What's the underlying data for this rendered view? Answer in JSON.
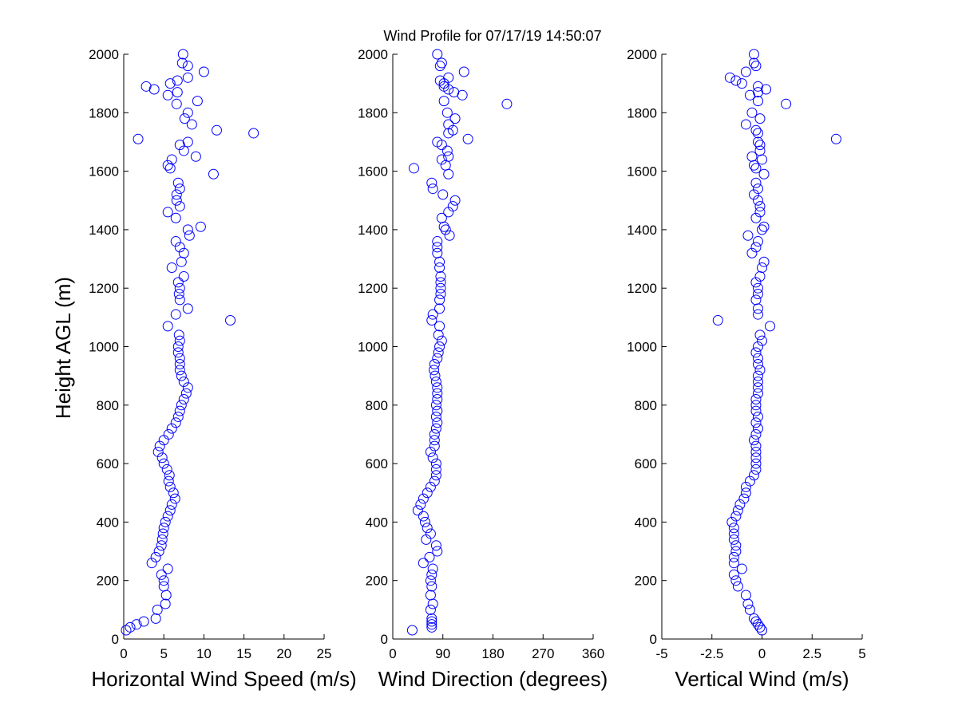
{
  "chart_data": [
    {
      "type": "scatter",
      "title": "Wind Profile for  07/17/19 14:50:07",
      "ylabel": "Height AGL (m)",
      "xlabel": "Horizontal Wind Speed (m/s)",
      "color": "#0000ff",
      "xlim": [
        0,
        25
      ],
      "xticks": [
        0,
        5,
        10,
        15,
        20,
        25
      ],
      "ylim": [
        0,
        2000
      ],
      "yticks": [
        0,
        200,
        400,
        600,
        800,
        1000,
        1200,
        1400,
        1600,
        1800,
        2000
      ],
      "x": [
        0.3,
        0.8,
        1.6,
        2.5,
        4.0,
        4.2,
        5.2,
        5.3,
        5.0,
        5.0,
        4.7,
        5.5,
        3.5,
        4.0,
        4.4,
        4.7,
        4.8,
        4.9,
        5.0,
        5.2,
        5.5,
        5.8,
        6.0,
        6.4,
        6.2,
        5.8,
        5.6,
        5.7,
        5.4,
        5.0,
        4.8,
        4.3,
        4.5,
        5.0,
        5.6,
        6.0,
        6.5,
        6.8,
        7.0,
        7.2,
        7.5,
        7.8,
        8.0,
        7.5,
        7.2,
        7.0,
        7.0,
        7.0,
        6.8,
        6.8,
        7.0,
        6.9,
        5.5,
        13.3,
        6.5,
        8.0,
        7.0,
        6.9,
        7.0,
        6.8,
        7.5,
        6.0,
        7.2,
        7.5,
        7.0,
        6.5,
        8.2,
        8.0,
        9.6,
        6.5,
        5.5,
        7.0,
        6.6,
        6.6,
        7.0,
        6.8,
        11.2,
        5.8,
        5.5,
        6.0,
        9.0,
        7.5,
        7.0,
        8.0,
        1.8,
        16.2,
        11.6,
        8.5,
        7.6,
        8.0,
        6.6,
        9.2,
        5.5,
        6.7,
        3.8,
        2.8,
        5.8,
        6.7,
        8.0,
        10.0,
        8.0,
        7.3,
        7.4
      ],
      "y": [
        30,
        40,
        50,
        60,
        70,
        100,
        120,
        150,
        180,
        200,
        220,
        240,
        260,
        280,
        300,
        320,
        340,
        360,
        380,
        400,
        420,
        440,
        460,
        480,
        500,
        520,
        540,
        560,
        580,
        600,
        620,
        640,
        660,
        680,
        700,
        720,
        740,
        760,
        780,
        800,
        820,
        840,
        860,
        880,
        900,
        920,
        940,
        960,
        980,
        1000,
        1020,
        1040,
        1070,
        1090,
        1110,
        1130,
        1160,
        1180,
        1200,
        1220,
        1240,
        1270,
        1290,
        1320,
        1340,
        1360,
        1380,
        1400,
        1410,
        1440,
        1460,
        1480,
        1500,
        1520,
        1540,
        1560,
        1590,
        1610,
        1620,
        1640,
        1650,
        1670,
        1690,
        1700,
        1710,
        1730,
        1740,
        1760,
        1780,
        1800,
        1830,
        1840,
        1860,
        1870,
        1880,
        1890,
        1900,
        1910,
        1920,
        1940,
        1960,
        1970,
        2000
      ]
    },
    {
      "type": "scatter",
      "xlabel": "Wind Direction (degrees)",
      "color": "#0000ff",
      "xlim": [
        0,
        360
      ],
      "xticks": [
        0,
        90,
        180,
        270,
        360
      ],
      "ylim": [
        0,
        2000
      ],
      "yticks": [
        0,
        200,
        400,
        600,
        800,
        1000,
        1200,
        1400,
        1600,
        1800,
        2000
      ],
      "x": [
        35,
        70,
        70,
        70,
        70,
        68,
        72,
        68,
        70,
        68,
        70,
        72,
        55,
        66,
        80,
        78,
        60,
        68,
        62,
        58,
        55,
        45,
        50,
        55,
        62,
        68,
        75,
        78,
        78,
        78,
        72,
        68,
        75,
        75,
        75,
        78,
        80,
        78,
        80,
        78,
        80,
        80,
        80,
        78,
        76,
        74,
        75,
        80,
        82,
        84,
        88,
        82,
        84,
        70,
        72,
        84,
        84,
        86,
        86,
        86,
        86,
        84,
        84,
        80,
        80,
        80,
        102,
        95,
        92,
        88,
        100,
        108,
        112,
        90,
        72,
        70,
        100,
        38,
        95,
        88,
        100,
        98,
        88,
        80,
        135,
        100,
        108,
        100,
        112,
        98,
        205,
        92,
        125,
        110,
        100,
        92,
        92,
        85,
        100,
        128,
        85,
        88,
        80
      ],
      "y": [
        30,
        40,
        50,
        60,
        70,
        100,
        120,
        150,
        180,
        200,
        220,
        240,
        260,
        280,
        300,
        320,
        340,
        360,
        380,
        400,
        420,
        440,
        460,
        480,
        500,
        520,
        540,
        560,
        580,
        600,
        620,
        640,
        660,
        680,
        700,
        720,
        740,
        760,
        780,
        800,
        820,
        840,
        860,
        880,
        900,
        920,
        940,
        960,
        980,
        1000,
        1020,
        1040,
        1070,
        1090,
        1110,
        1130,
        1160,
        1180,
        1200,
        1220,
        1240,
        1270,
        1290,
        1320,
        1340,
        1360,
        1380,
        1400,
        1410,
        1440,
        1460,
        1480,
        1500,
        1520,
        1540,
        1560,
        1590,
        1610,
        1620,
        1640,
        1650,
        1670,
        1690,
        1700,
        1710,
        1730,
        1740,
        1760,
        1780,
        1800,
        1830,
        1840,
        1860,
        1870,
        1880,
        1890,
        1900,
        1910,
        1920,
        1940,
        1960,
        1970,
        2000
      ]
    },
    {
      "type": "scatter",
      "xlabel": "Vertical Wind (m/s)",
      "color": "#0000ff",
      "xlim": [
        -5,
        5
      ],
      "xticks": [
        -5,
        -2.5,
        0,
        2.5,
        5
      ],
      "ylim": [
        0,
        2000
      ],
      "yticks": [
        0,
        200,
        400,
        600,
        800,
        1000,
        1200,
        1400,
        1600,
        1800,
        2000
      ],
      "x": [
        0.0,
        -0.1,
        -0.2,
        -0.3,
        -0.4,
        -0.6,
        -0.7,
        -0.8,
        -1.2,
        -1.3,
        -1.4,
        -1.0,
        -1.4,
        -1.4,
        -1.3,
        -1.3,
        -1.4,
        -1.4,
        -1.4,
        -1.5,
        -1.3,
        -1.2,
        -1.1,
        -0.9,
        -0.8,
        -0.8,
        -0.6,
        -0.4,
        -0.3,
        -0.3,
        -0.3,
        -0.3,
        -0.3,
        -0.4,
        -0.3,
        -0.2,
        -0.3,
        -0.2,
        -0.3,
        -0.3,
        -0.3,
        -0.2,
        -0.2,
        -0.2,
        -0.2,
        -0.1,
        -0.2,
        -0.2,
        -0.3,
        -0.2,
        0.0,
        -0.1,
        0.4,
        -2.2,
        -0.2,
        -0.2,
        -0.3,
        -0.2,
        -0.2,
        -0.3,
        -0.1,
        0.0,
        0.1,
        -0.5,
        -0.3,
        -0.2,
        -0.7,
        0.0,
        0.1,
        -0.3,
        -0.1,
        -0.1,
        -0.2,
        -0.4,
        -0.2,
        -0.3,
        0.1,
        -0.3,
        -0.4,
        0.0,
        -0.5,
        -0.1,
        -0.1,
        -0.2,
        3.7,
        -0.2,
        -0.3,
        -0.8,
        -0.1,
        -0.5,
        1.2,
        -0.2,
        -0.6,
        -0.2,
        0.2,
        -0.2,
        -1.0,
        -1.3,
        -1.6,
        -0.8,
        -0.3,
        -0.4,
        -0.4
      ],
      "y": [
        30,
        40,
        50,
        60,
        70,
        100,
        120,
        150,
        180,
        200,
        220,
        240,
        260,
        280,
        300,
        320,
        340,
        360,
        380,
        400,
        420,
        440,
        460,
        480,
        500,
        520,
        540,
        560,
        580,
        600,
        620,
        640,
        660,
        680,
        700,
        720,
        740,
        760,
        780,
        800,
        820,
        840,
        860,
        880,
        900,
        920,
        940,
        960,
        980,
        1000,
        1020,
        1040,
        1070,
        1090,
        1110,
        1130,
        1160,
        1180,
        1200,
        1220,
        1240,
        1270,
        1290,
        1320,
        1340,
        1360,
        1380,
        1400,
        1410,
        1440,
        1460,
        1480,
        1500,
        1520,
        1540,
        1560,
        1590,
        1610,
        1620,
        1640,
        1650,
        1670,
        1690,
        1700,
        1710,
        1730,
        1740,
        1760,
        1780,
        1800,
        1830,
        1840,
        1860,
        1870,
        1880,
        1890,
        1900,
        1910,
        1920,
        1940,
        1960,
        1970,
        2000
      ]
    }
  ]
}
